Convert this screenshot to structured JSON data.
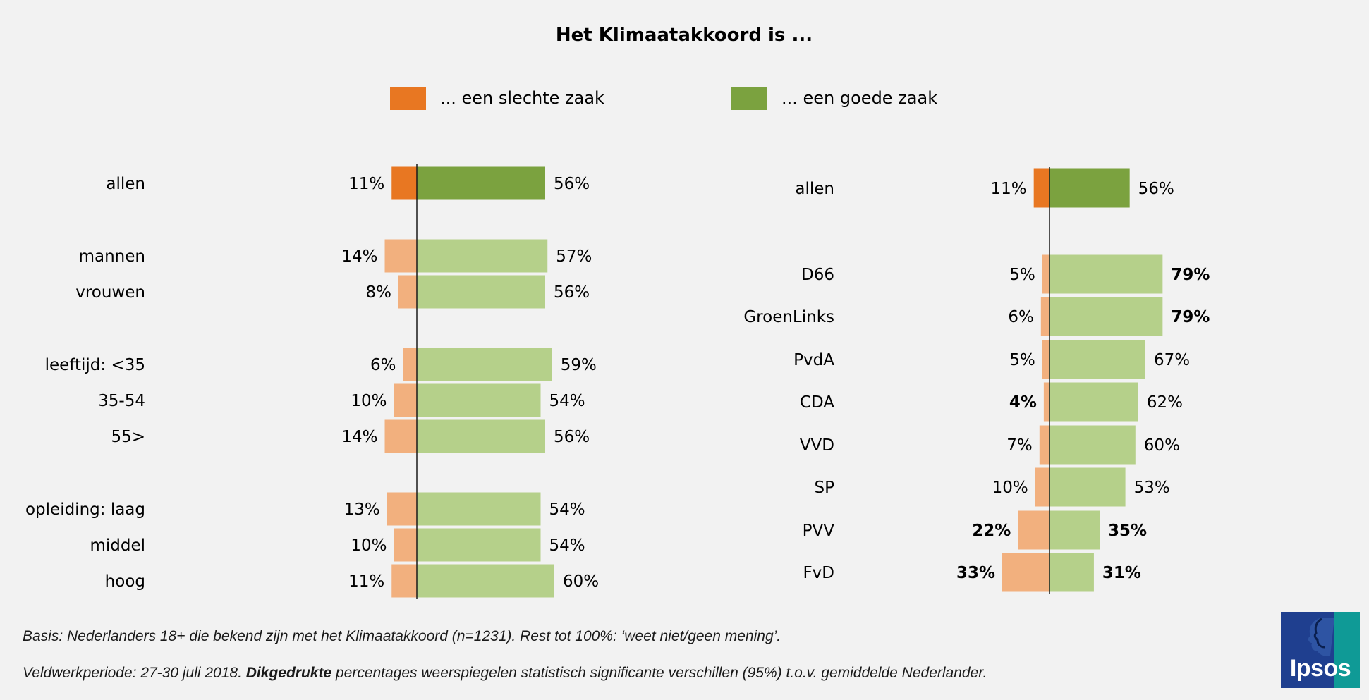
{
  "title": "Het Klimaatakkoord is ...",
  "legend": [
    {
      "label": "... een slechte zaak",
      "color": "#e87722"
    },
    {
      "label": "... een goede zaak",
      "color": "#7ba23f"
    }
  ],
  "colors": {
    "bad_strong": "#e87722",
    "good_strong": "#7ba23f",
    "bad_light": "#f2b07e",
    "good_light": "#b5d08a",
    "axis": "#1a1a1a"
  },
  "chart_data": [
    {
      "type": "bar",
      "orientation": "diverging-horizontal",
      "categories": [
        "allen",
        "mannen",
        "vrouwen",
        "leeftijd: <35",
        "35-54",
        "55>",
        "opleiding: laag",
        "middel",
        "hoog"
      ],
      "series": [
        {
          "name": "... een slechte zaak",
          "values": [
            11,
            14,
            8,
            6,
            10,
            14,
            13,
            10,
            11
          ],
          "labels": [
            "11%",
            "14%",
            "8%",
            "6%",
            "10%",
            "14%",
            "13%",
            "10%",
            "11%"
          ],
          "bold": [
            false,
            false,
            false,
            false,
            false,
            false,
            false,
            false,
            false
          ]
        },
        {
          "name": "... een goede zaak",
          "values": [
            56,
            57,
            56,
            59,
            54,
            56,
            54,
            54,
            60
          ],
          "labels": [
            "56%",
            "57%",
            "56%",
            "59%",
            "54%",
            "56%",
            "54%",
            "54%",
            "60%"
          ],
          "bold": [
            false,
            false,
            false,
            false,
            false,
            false,
            false,
            false,
            false
          ]
        }
      ],
      "highlight": [
        true,
        false,
        false,
        false,
        false,
        false,
        false,
        false,
        false
      ],
      "unit": "%"
    },
    {
      "type": "bar",
      "orientation": "diverging-horizontal",
      "categories": [
        "allen",
        "D66",
        "GroenLinks",
        "PvdA",
        "CDA",
        "VVD",
        "SP",
        "PVV",
        "FvD"
      ],
      "series": [
        {
          "name": "... een slechte zaak",
          "values": [
            11,
            5,
            6,
            5,
            4,
            7,
            10,
            22,
            33
          ],
          "labels": [
            "11%",
            "5%",
            "6%",
            "5%",
            "4%",
            "7%",
            "10%",
            "22%",
            "33%"
          ],
          "bold": [
            false,
            false,
            false,
            false,
            true,
            false,
            false,
            true,
            true
          ]
        },
        {
          "name": "... een goede zaak",
          "values": [
            56,
            79,
            79,
            67,
            62,
            60,
            53,
            35,
            31
          ],
          "labels": [
            "56%",
            "79%",
            "79%",
            "67%",
            "62%",
            "60%",
            "53%",
            "35%",
            "31%"
          ],
          "bold": [
            false,
            true,
            true,
            false,
            false,
            false,
            false,
            true,
            true
          ]
        }
      ],
      "highlight": [
        true,
        false,
        false,
        false,
        false,
        false,
        false,
        false,
        false
      ],
      "unit": "%"
    }
  ],
  "footnotes": {
    "basis": "Basis: Nederlanders 18+ die bekend zijn met het Klimaatakkoord (n=1231). Rest tot 100%: ‘weet niet/geen mening’.",
    "fieldwork_prefix": "Veldwerkperiode: 27-30 juli 2018. ",
    "fieldwork_bold": "Dikgedrukte",
    "fieldwork_suffix": " percentages weerspiegelen statistisch significante verschillen (95%) t.o.v. gemiddelde Nederlander."
  },
  "logo": {
    "text": "Ipsos"
  }
}
